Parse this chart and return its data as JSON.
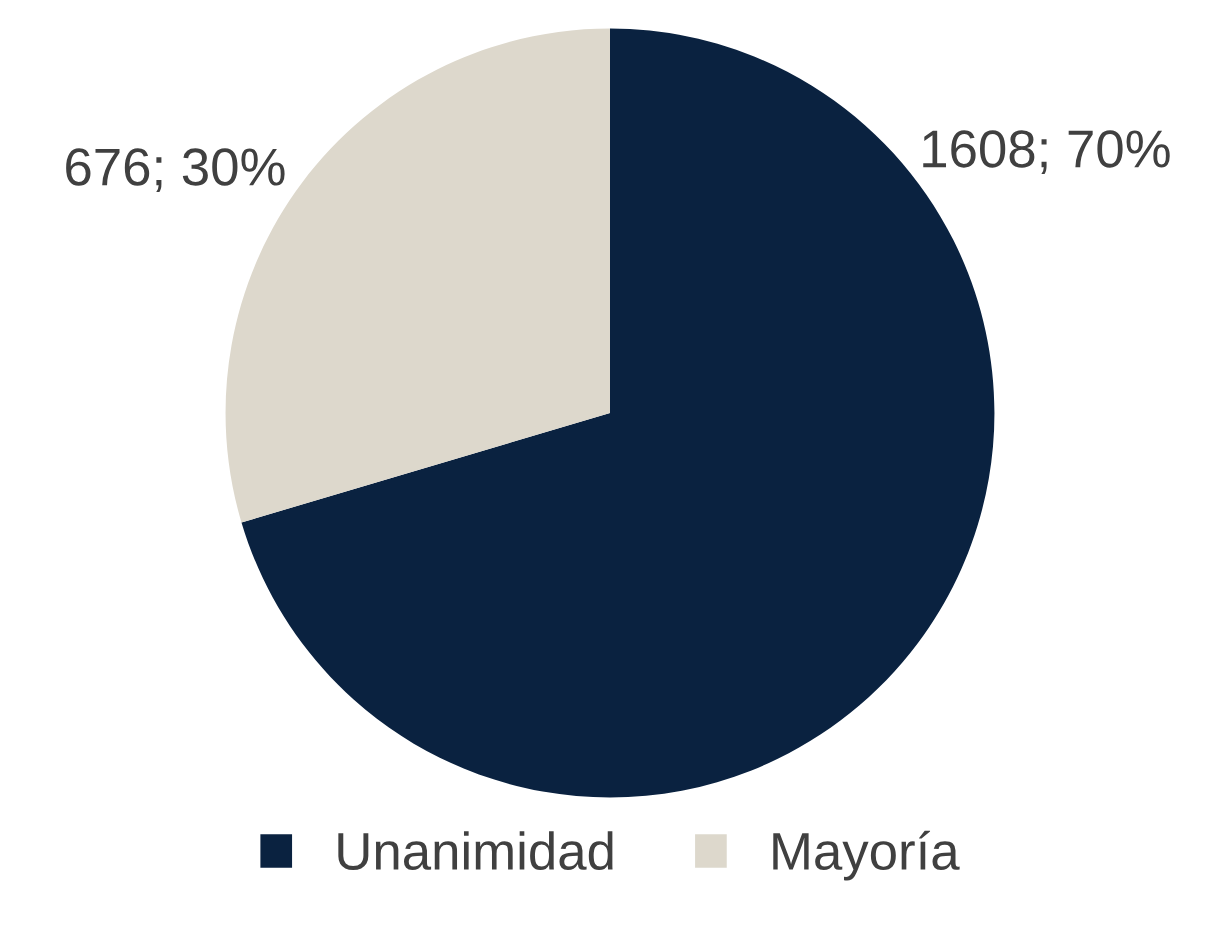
{
  "chart_data": {
    "type": "pie",
    "categories": [
      "Unanimidad",
      "Mayoría"
    ],
    "values": [
      1608,
      676
    ],
    "value_labels": [
      "1608; 70%",
      "676; 30%"
    ],
    "colors": [
      "#0a2240",
      "#ddd8cc"
    ],
    "legend": "bottom"
  }
}
